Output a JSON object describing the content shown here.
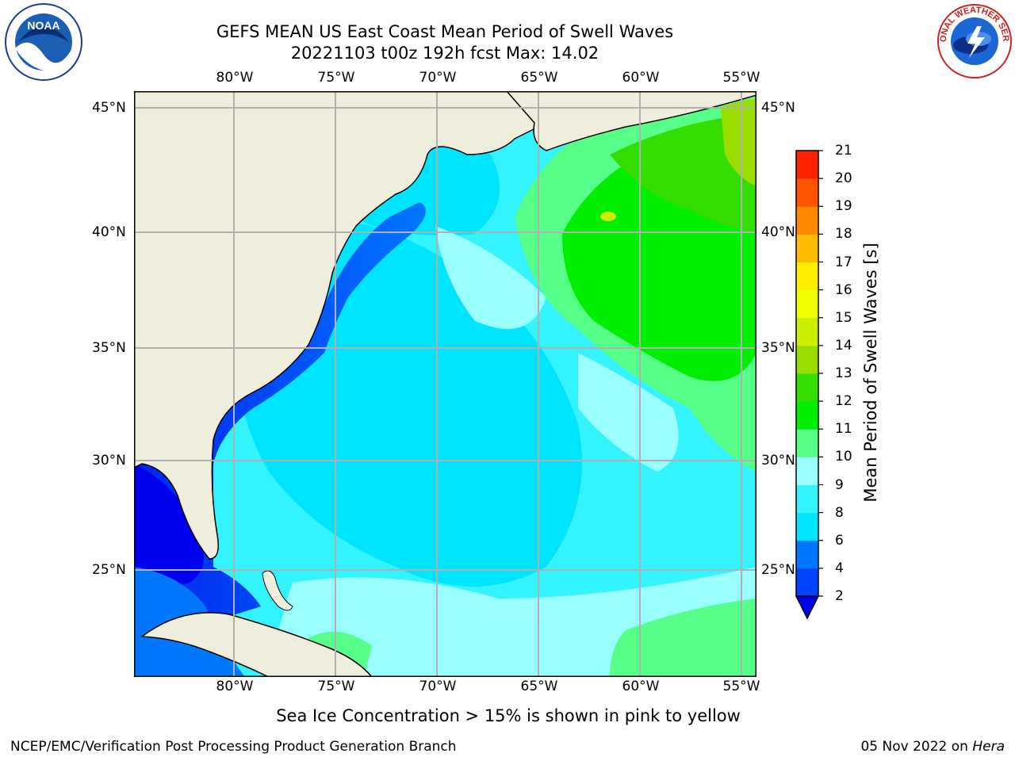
{
  "title_line1": "GEFS MEAN US East Coast Mean Period of Swell Waves",
  "title_line2": "20221103 t00z 192h fcst   Max: 14.02",
  "longitude_labels": [
    "80°W",
    "75°W",
    "70°W",
    "65°W",
    "60°W",
    "55°W"
  ],
  "latitude_labels": [
    "45°N",
    "40°N",
    "35°N",
    "30°N",
    "25°N"
  ],
  "colorbar": {
    "title": "Mean Period of Swell Waves [s]",
    "tick_labels": [
      "2",
      "4",
      "6",
      "8",
      "9",
      "10",
      "11",
      "12",
      "13",
      "14",
      "15",
      "16",
      "17",
      "18",
      "19",
      "20",
      "21"
    ],
    "colors": [
      "#0044ff",
      "#0077ff",
      "#00e5ff",
      "#33f3ff",
      "#99ffff",
      "#55ff88",
      "#00ee00",
      "#33dd00",
      "#99dd00",
      "#ccee00",
      "#eeff00",
      "#ffee00",
      "#ffbb00",
      "#ff8800",
      "#ff5500",
      "#ff2200",
      "#ff0000"
    ],
    "under_color": "#0000ee"
  },
  "caption": "Sea Ice Concentration > 15% is shown in pink to yellow",
  "footer": {
    "left": "NCEP/EMC/Verification Post Processing Product Generation Branch",
    "date": "05 Nov 2022 on",
    "machine": "Hera"
  },
  "logos": {
    "left_text": "NOAA",
    "right_text": "NATIONAL WEATHER SERVICE"
  },
  "land_color": "#efeedd"
}
